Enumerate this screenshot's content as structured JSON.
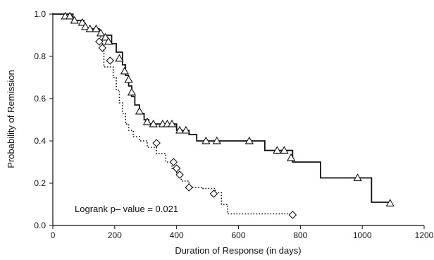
{
  "chart_data": {
    "type": "line",
    "title": "",
    "xlabel": "Duration of Response (in days)",
    "ylabel": "Probability of Remission",
    "xlim": [
      0,
      1200
    ],
    "ylim": [
      0,
      1.0
    ],
    "xticks": [
      "0",
      "200",
      "400",
      "600",
      "800",
      "1000",
      "1200"
    ],
    "yticks": [
      "0.0",
      "0.2",
      "0.4",
      "0.6",
      "0.8",
      "1.0"
    ],
    "grid": false,
    "legend": "none",
    "annotation": "Logrank p– value = 0.021",
    "series": [
      {
        "style": "solid",
        "marker": "triangle",
        "color": "#111111",
        "steps": [
          [
            0,
            1.0
          ],
          [
            65,
            0.97
          ],
          [
            100,
            0.93
          ],
          [
            150,
            0.9
          ],
          [
            190,
            0.86
          ],
          [
            205,
            0.82
          ],
          [
            225,
            0.76
          ],
          [
            235,
            0.71
          ],
          [
            245,
            0.66
          ],
          [
            255,
            0.61
          ],
          [
            265,
            0.57
          ],
          [
            280,
            0.53
          ],
          [
            295,
            0.5
          ],
          [
            310,
            0.48
          ],
          [
            400,
            0.45
          ],
          [
            440,
            0.43
          ],
          [
            465,
            0.4
          ],
          [
            685,
            0.355
          ],
          [
            775,
            0.3
          ],
          [
            865,
            0.225
          ],
          [
            1030,
            0.11
          ]
        ],
        "end": 1090,
        "censored": [
          [
            40,
            0.99
          ],
          [
            55,
            0.99
          ],
          [
            70,
            0.97
          ],
          [
            95,
            0.96
          ],
          [
            105,
            0.94
          ],
          [
            120,
            0.93
          ],
          [
            140,
            0.93
          ],
          [
            155,
            0.91
          ],
          [
            170,
            0.89
          ],
          [
            180,
            0.87
          ],
          [
            215,
            0.79
          ],
          [
            232,
            0.73
          ],
          [
            245,
            0.69
          ],
          [
            255,
            0.63
          ],
          [
            280,
            0.54
          ],
          [
            305,
            0.49
          ],
          [
            325,
            0.48
          ],
          [
            355,
            0.48
          ],
          [
            370,
            0.48
          ],
          [
            385,
            0.48
          ],
          [
            410,
            0.45
          ],
          [
            430,
            0.45
          ],
          [
            495,
            0.4
          ],
          [
            530,
            0.4
          ],
          [
            635,
            0.4
          ],
          [
            725,
            0.355
          ],
          [
            748,
            0.355
          ],
          [
            770,
            0.32
          ],
          [
            985,
            0.225
          ],
          [
            1090,
            0.105
          ]
        ]
      },
      {
        "style": "dotted",
        "marker": "diamond",
        "color": "#111111",
        "steps": [
          [
            0,
            1.0
          ],
          [
            60,
            0.97
          ],
          [
            100,
            0.93
          ],
          [
            150,
            0.9
          ],
          [
            155,
            0.86
          ],
          [
            165,
            0.75
          ],
          [
            195,
            0.7
          ],
          [
            205,
            0.64
          ],
          [
            215,
            0.58
          ],
          [
            225,
            0.53
          ],
          [
            235,
            0.48
          ],
          [
            245,
            0.45
          ],
          [
            260,
            0.42
          ],
          [
            280,
            0.4
          ],
          [
            305,
            0.37
          ],
          [
            335,
            0.34
          ],
          [
            365,
            0.3
          ],
          [
            385,
            0.27
          ],
          [
            400,
            0.24
          ],
          [
            415,
            0.21
          ],
          [
            440,
            0.18
          ],
          [
            485,
            0.175
          ],
          [
            525,
            0.155
          ],
          [
            545,
            0.1
          ],
          [
            565,
            0.055
          ]
        ],
        "end": 780,
        "censored": [
          [
            150,
            0.87
          ],
          [
            160,
            0.84
          ],
          [
            185,
            0.78
          ],
          [
            335,
            0.39
          ],
          [
            390,
            0.3
          ],
          [
            400,
            0.27
          ],
          [
            410,
            0.24
          ],
          [
            440,
            0.18
          ],
          [
            520,
            0.15
          ],
          [
            775,
            0.05
          ]
        ]
      }
    ]
  }
}
